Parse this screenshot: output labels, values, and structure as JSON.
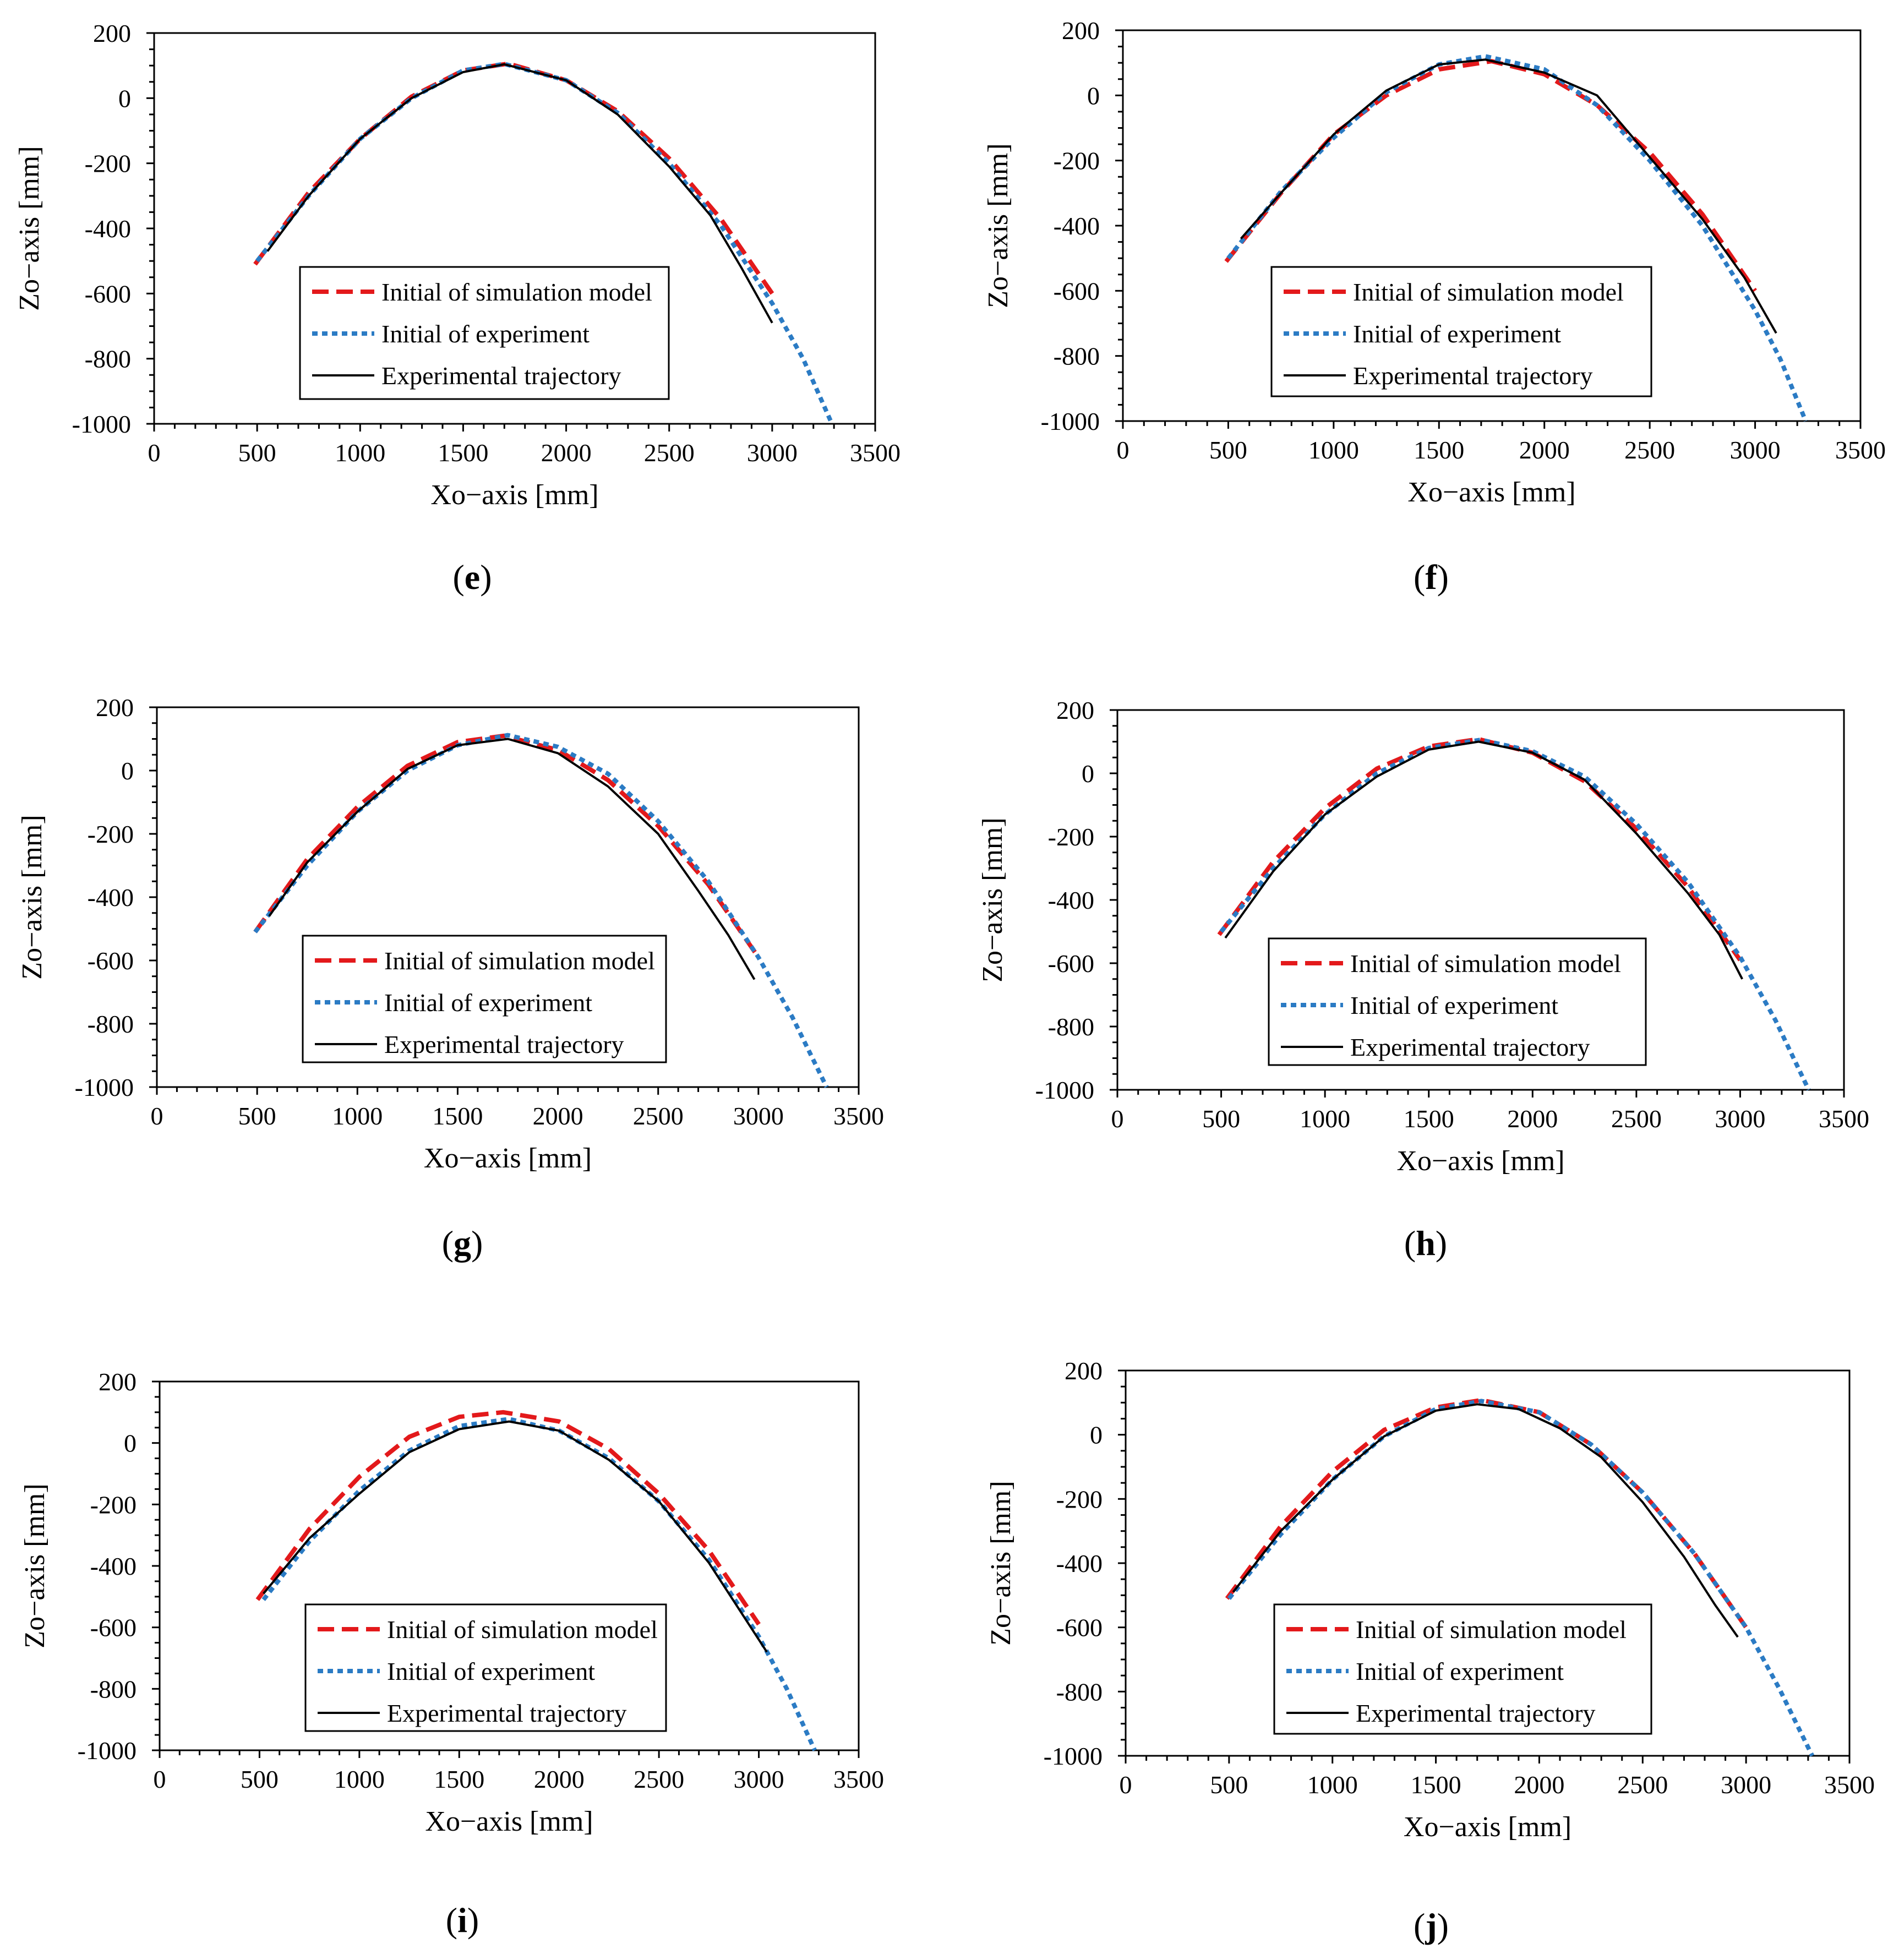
{
  "figure": {
    "legend": {
      "sim": "Initial of simulation model",
      "exp": "Initial of experiment",
      "traj": "Experimental trajectory"
    },
    "colors": {
      "sim": "#e3191b",
      "exp": "#2b7bc4",
      "traj": "#000000"
    }
  },
  "chart_data": [
    {
      "panel": "e",
      "type": "line",
      "xlabel": "Xo−axis [mm]",
      "ylabel": "Zo−axis [mm]",
      "xlim": [
        0,
        3500
      ],
      "ylim": [
        -1000,
        200
      ],
      "xticks": [
        0,
        500,
        1000,
        1500,
        2000,
        2500,
        3000,
        3500
      ],
      "yticks": [
        -1000,
        -800,
        -600,
        -400,
        -200,
        0,
        200
      ],
      "series": [
        {
          "name": "Initial of simulation model",
          "x": [
            490,
            750,
            1000,
            1250,
            1500,
            1720,
            2000,
            2250,
            2500,
            2750,
            3000
          ],
          "y": [
            -510,
            -290,
            -125,
            5,
            85,
            106,
            55,
            -40,
            -185,
            -370,
            -600
          ]
        },
        {
          "name": "Initial of experiment",
          "x": [
            500,
            750,
            1000,
            1250,
            1500,
            1700,
            2000,
            2250,
            2500,
            2750,
            3000,
            3150,
            3290
          ],
          "y": [
            -500,
            -300,
            -125,
            0,
            85,
            105,
            55,
            -45,
            -200,
            -390,
            -630,
            -800,
            -1000
          ]
        },
        {
          "name": "Experimental trajectory",
          "x": [
            550,
            750,
            1000,
            1250,
            1500,
            1700,
            2000,
            2250,
            2500,
            2700,
            2850,
            3000
          ],
          "y": [
            -470,
            -300,
            -125,
            0,
            80,
            104,
            55,
            -50,
            -210,
            -360,
            -520,
            -690
          ]
        }
      ]
    },
    {
      "panel": "f",
      "type": "line",
      "xlabel": "Xo−axis [mm]",
      "ylabel": "Zo−axis [mm]",
      "xlim": [
        0,
        3500
      ],
      "ylim": [
        -1000,
        200
      ],
      "xticks": [
        0,
        500,
        1000,
        1500,
        2000,
        2500,
        3000,
        3500
      ],
      "yticks": [
        -1000,
        -800,
        -600,
        -400,
        -200,
        0,
        200
      ],
      "series": [
        {
          "name": "Initial of simulation model",
          "x": [
            490,
            750,
            1000,
            1250,
            1500,
            1750,
            2000,
            2250,
            2500,
            2750,
            3000
          ],
          "y": [
            -510,
            -300,
            -120,
            0,
            80,
            105,
            65,
            -30,
            -175,
            -365,
            -600
          ]
        },
        {
          "name": "Initial of experiment",
          "x": [
            500,
            750,
            1000,
            1250,
            1500,
            1720,
            2000,
            2250,
            2500,
            2750,
            3000,
            3120,
            3240
          ],
          "y": [
            -500,
            -295,
            -130,
            10,
            95,
            120,
            80,
            -30,
            -200,
            -400,
            -660,
            -810,
            -1000
          ]
        },
        {
          "name": "Experimental trajectory",
          "x": [
            560,
            750,
            1000,
            1250,
            1500,
            1720,
            2000,
            2250,
            2500,
            2750,
            2950,
            3100
          ],
          "y": [
            -440,
            -300,
            -120,
            15,
            95,
            110,
            70,
            0,
            -190,
            -380,
            -560,
            -730
          ]
        }
      ]
    },
    {
      "panel": "g",
      "type": "line",
      "xlabel": "Xo−axis [mm]",
      "ylabel": "Zo−axis [mm]",
      "xlim": [
        0,
        3500
      ],
      "ylim": [
        -1000,
        200
      ],
      "xticks": [
        0,
        500,
        1000,
        1500,
        2000,
        2500,
        3000,
        3500
      ],
      "yticks": [
        -1000,
        -800,
        -600,
        -400,
        -200,
        0,
        200
      ],
      "series": [
        {
          "name": "Initial of simulation model",
          "x": [
            490,
            750,
            1000,
            1250,
            1500,
            1730,
            2000,
            2250,
            2500,
            2750,
            3000
          ],
          "y": [
            -510,
            -280,
            -115,
            15,
            90,
            110,
            65,
            -30,
            -175,
            -360,
            -590
          ]
        },
        {
          "name": "Initial of experiment",
          "x": [
            490,
            750,
            1000,
            1250,
            1500,
            1750,
            2000,
            2250,
            2500,
            2750,
            3000,
            3170,
            3340
          ],
          "y": [
            -510,
            -300,
            -130,
            0,
            80,
            112,
            75,
            -10,
            -160,
            -350,
            -590,
            -780,
            -1000
          ]
        },
        {
          "name": "Experimental trajectory",
          "x": [
            560,
            750,
            1000,
            1250,
            1500,
            1750,
            2000,
            2250,
            2500,
            2700,
            2850,
            2980
          ],
          "y": [
            -460,
            -290,
            -130,
            5,
            80,
            100,
            55,
            -50,
            -200,
            -380,
            -520,
            -660
          ]
        }
      ]
    },
    {
      "panel": "h",
      "type": "line",
      "xlabel": "Xo−axis [mm]",
      "ylabel": "Zo−axis [mm]",
      "xlim": [
        0,
        3500
      ],
      "ylim": [
        -1000,
        200
      ],
      "xticks": [
        0,
        500,
        1000,
        1500,
        2000,
        2500,
        3000,
        3500
      ],
      "yticks": [
        -1000,
        -800,
        -600,
        -400,
        -200,
        0,
        200
      ],
      "series": [
        {
          "name": "Initial of simulation model",
          "x": [
            490,
            750,
            1000,
            1250,
            1500,
            1740,
            2000,
            2250,
            2500,
            2750,
            3000
          ],
          "y": [
            -510,
            -280,
            -110,
            15,
            85,
            108,
            65,
            -25,
            -175,
            -360,
            -590
          ]
        },
        {
          "name": "Initial of experiment",
          "x": [
            500,
            750,
            1000,
            1250,
            1500,
            1750,
            2000,
            2250,
            2500,
            2750,
            3000,
            3170,
            3330
          ],
          "y": [
            -500,
            -300,
            -130,
            0,
            80,
            106,
            70,
            -10,
            -160,
            -345,
            -580,
            -780,
            -1000
          ]
        },
        {
          "name": "Experimental trajectory",
          "x": [
            520,
            750,
            1000,
            1250,
            1500,
            1740,
            2000,
            2250,
            2500,
            2750,
            2900,
            3010
          ],
          "y": [
            -520,
            -310,
            -130,
            -10,
            75,
            100,
            65,
            -20,
            -190,
            -380,
            -510,
            -650
          ]
        }
      ]
    },
    {
      "panel": "i",
      "type": "line",
      "xlabel": "Xo−axis [mm]",
      "ylabel": "Zo−axis [mm]",
      "xlim": [
        0,
        3500
      ],
      "ylim": [
        -1000,
        200
      ],
      "xticks": [
        0,
        500,
        1000,
        1500,
        2000,
        2500,
        3000,
        3500
      ],
      "yticks": [
        -1000,
        -800,
        -600,
        -400,
        -200,
        0,
        200
      ],
      "series": [
        {
          "name": "Initial of simulation model",
          "x": [
            490,
            750,
            1000,
            1250,
            1500,
            1720,
            2000,
            2250,
            2500,
            2750,
            3000
          ],
          "y": [
            -510,
            -280,
            -110,
            20,
            85,
            100,
            70,
            -20,
            -165,
            -350,
            -590
          ]
        },
        {
          "name": "Initial of experiment",
          "x": [
            520,
            750,
            1000,
            1250,
            1500,
            1750,
            2000,
            2250,
            2500,
            2750,
            3000,
            3140,
            3280
          ],
          "y": [
            -510,
            -320,
            -155,
            -25,
            55,
            78,
            40,
            -50,
            -190,
            -380,
            -630,
            -800,
            -1000
          ]
        },
        {
          "name": "Experimental trajectory",
          "x": [
            520,
            750,
            1000,
            1250,
            1500,
            1750,
            2000,
            2250,
            2500,
            2750,
            3040
          ],
          "y": [
            -490,
            -310,
            -165,
            -30,
            45,
            70,
            40,
            -55,
            -190,
            -390,
            -680
          ]
        }
      ]
    },
    {
      "panel": "j",
      "type": "line",
      "xlabel": "Xo−axis [mm]",
      "ylabel": "Zo−axis [mm]",
      "xlim": [
        0,
        3500
      ],
      "ylim": [
        -1000,
        200
      ],
      "xticks": [
        0,
        500,
        1000,
        1500,
        2000,
        2500,
        3000,
        3500
      ],
      "yticks": [
        -1000,
        -800,
        -600,
        -400,
        -200,
        0,
        200
      ],
      "series": [
        {
          "name": "Initial of simulation model",
          "x": [
            490,
            750,
            1000,
            1250,
            1500,
            1720,
            2000,
            2250,
            2500,
            2750,
            3000
          ],
          "y": [
            -510,
            -285,
            -115,
            15,
            85,
            108,
            70,
            -30,
            -180,
            -370,
            -600
          ]
        },
        {
          "name": "Initial of experiment",
          "x": [
            500,
            750,
            1000,
            1250,
            1500,
            1720,
            2000,
            2250,
            2500,
            2750,
            3000,
            3160,
            3320
          ],
          "y": [
            -510,
            -310,
            -140,
            -5,
            80,
            105,
            70,
            -30,
            -180,
            -370,
            -600,
            -790,
            -1000
          ]
        },
        {
          "name": "Experimental trajectory",
          "x": [
            520,
            750,
            1000,
            1250,
            1500,
            1700,
            1900,
            2100,
            2300,
            2500,
            2700,
            2850,
            2960
          ],
          "y": [
            -490,
            -300,
            -140,
            -5,
            75,
            95,
            80,
            20,
            -70,
            -210,
            -380,
            -530,
            -630
          ]
        }
      ]
    }
  ]
}
